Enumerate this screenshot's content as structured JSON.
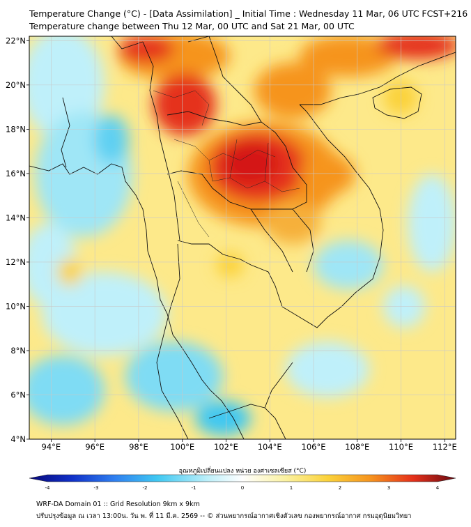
{
  "title": {
    "line1": "Temperature Change (°C) - [Data Assimilation] _ Initial Time : Wednesday 11 Mar, 06 UTC FCST+216",
    "line2": "Temperature change between Thu 12 Mar, 00 UTC and Sat 21 Mar, 00 UTC"
  },
  "map": {
    "lon_range": [
      93.0,
      112.5
    ],
    "lat_range": [
      4.0,
      22.2
    ],
    "lon_ticks": [
      "94°E",
      "96°E",
      "98°E",
      "100°E",
      "102°E",
      "104°E",
      "106°E",
      "108°E",
      "110°E",
      "112°E"
    ],
    "lat_ticks": [
      "22°N",
      "20°N",
      "18°N",
      "16°N",
      "14°N",
      "12°N",
      "10°N",
      "8°N",
      "6°N",
      "4°N"
    ],
    "gridlines": true,
    "boundaries": "country and province borders"
  },
  "colorbar": {
    "label": "อุณหภูมิเปลี่ยนแปลง หน่วย องศาเซลเซียส (°C)",
    "ticks": [
      "-4",
      "-3",
      "-2",
      "-1",
      "0",
      "1",
      "2",
      "3",
      "4"
    ],
    "range": [
      -4,
      4
    ],
    "colors": [
      "#08087a",
      "#1030c8",
      "#2f7ff0",
      "#3fc8f2",
      "#bff0fa",
      "#ffffff",
      "#fbf2a2",
      "#fbd23a",
      "#f6941e",
      "#e5301a",
      "#6a0a12"
    ]
  },
  "footer": {
    "line1": "WRF-DA Domain 01 :: Grid Resolution 9km x 9km",
    "line2": "ปรับปรุงข้อมูล ณ เวลา 13:00น. วัน พ. ที่ 11 มี.ค. 2569 -- © ส่วนพยากรณ์อากาศเชิงตัวเลข กองพยากรณ์อากาศ กรมอุตุนิยมวิทยา"
  }
}
